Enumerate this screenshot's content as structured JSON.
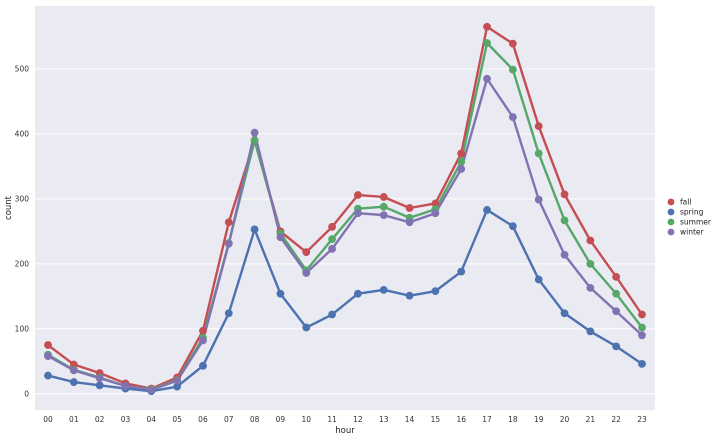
{
  "chart_data": {
    "type": "line",
    "title": "",
    "xlabel": "hour",
    "ylabel": "count",
    "ylim": [
      -25,
      597
    ],
    "yticks": [
      0,
      100,
      200,
      300,
      400,
      500
    ],
    "grid": true,
    "legend_position": "right",
    "categories": [
      "00",
      "01",
      "02",
      "03",
      "04",
      "05",
      "06",
      "07",
      "08",
      "09",
      "10",
      "11",
      "12",
      "13",
      "14",
      "15",
      "16",
      "17",
      "18",
      "19",
      "20",
      "21",
      "22",
      "23"
    ],
    "series": [
      {
        "name": "fall",
        "color": "#c44e52",
        "values": [
          75,
          45,
          32,
          16,
          8,
          25,
          97,
          264,
          390,
          250,
          218,
          257,
          306,
          303,
          286,
          293,
          370,
          565,
          539,
          412,
          307,
          236,
          180,
          122
        ]
      },
      {
        "name": "spring",
        "color": "#4c72b0",
        "values": [
          28,
          18,
          13,
          8,
          4,
          11,
          43,
          124,
          253,
          154,
          102,
          122,
          154,
          160,
          151,
          158,
          188,
          283,
          258,
          176,
          124,
          96,
          73,
          46
        ]
      },
      {
        "name": "summer",
        "color": "#55a868",
        "values": [
          60,
          37,
          25,
          12,
          7,
          21,
          86,
          232,
          390,
          247,
          190,
          238,
          285,
          288,
          271,
          284,
          357,
          540,
          499,
          370,
          267,
          200,
          154,
          102
        ]
      },
      {
        "name": "winter",
        "color": "#8172b2",
        "values": [
          58,
          36,
          24,
          12,
          6,
          20,
          82,
          231,
          402,
          241,
          186,
          223,
          278,
          275,
          264,
          278,
          346,
          485,
          426,
          299,
          214,
          163,
          127,
          90
        ]
      }
    ]
  }
}
